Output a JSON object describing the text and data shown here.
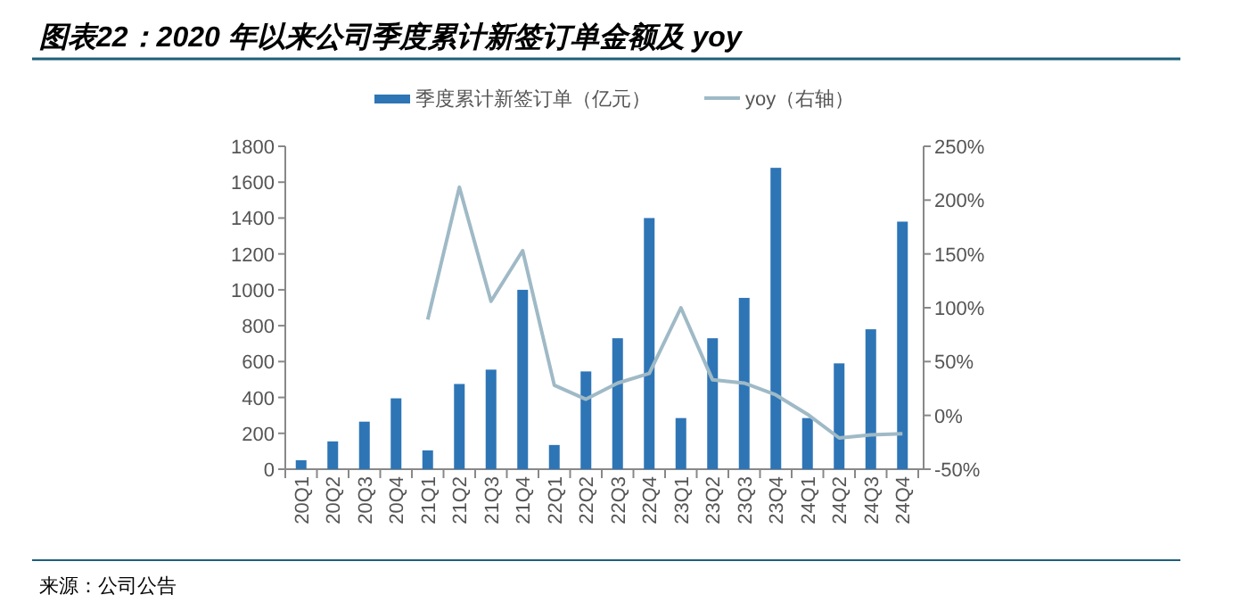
{
  "chart_data": {
    "type": "bar",
    "title": "图表22：2020 年以来公司季度累计新签订单金额及 yoy",
    "categories": [
      "20Q1",
      "20Q2",
      "20Q3",
      "20Q4",
      "21Q1",
      "21Q2",
      "21Q3",
      "21Q4",
      "22Q1",
      "22Q2",
      "22Q3",
      "22Q4",
      "23Q1",
      "23Q2",
      "23Q3",
      "23Q4",
      "24Q1",
      "24Q2",
      "24Q3",
      "24Q4"
    ],
    "series": [
      {
        "name": "季度累计新签订单（亿元）",
        "color": "#2e75b6",
        "values": [
          50,
          155,
          265,
          395,
          105,
          475,
          555,
          1000,
          135,
          545,
          730,
          1400,
          285,
          730,
          955,
          1680,
          285,
          590,
          780,
          1380
        ]
      },
      {
        "name": "yoy（右轴）",
        "type": "line",
        "axis": "y2",
        "color": "#9fbac6",
        "values": [
          null,
          null,
          null,
          null,
          89,
          212,
          106,
          153,
          28,
          15,
          30,
          39,
          100,
          33,
          30,
          19,
          1,
          -21,
          -18,
          -17
        ]
      }
    ],
    "ylim": [
      0,
      1800
    ],
    "yticks": [
      0,
      200,
      400,
      600,
      800,
      1000,
      1200,
      1400,
      1600,
      1800
    ],
    "y2lim": [
      -50,
      250
    ],
    "y2ticks": [
      {
        "value": -50,
        "label": "-50%"
      },
      {
        "value": 0,
        "label": "0%"
      },
      {
        "value": 50,
        "label": "50%"
      },
      {
        "value": 100,
        "label": "100%"
      },
      {
        "value": 150,
        "label": "150%"
      },
      {
        "value": 200,
        "label": "200%"
      },
      {
        "value": 250,
        "label": "250%"
      }
    ],
    "legend": "top",
    "grid": false,
    "annotations": [
      "来源：公司公告"
    ]
  }
}
